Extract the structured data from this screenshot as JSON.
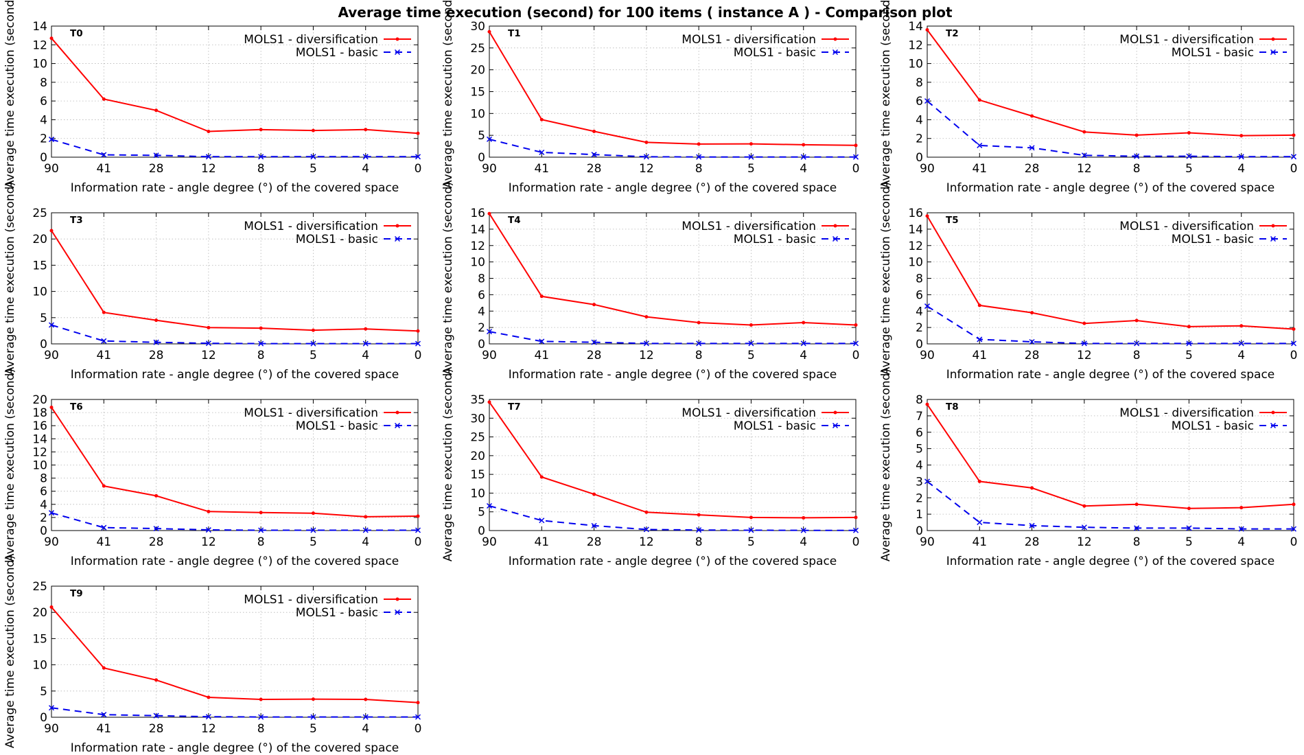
{
  "title": "Average time execution (second) for 100 items ( instance A )  - Comparison plot",
  "colors": {
    "diversification": "#ff0000",
    "basic": "#0000ee"
  },
  "chart_data": [
    {
      "type": "line",
      "panel": "T0",
      "xlabel": "Information rate - angle degree (°)  of the covered space",
      "ylabel": "Average time execution (second)",
      "categories": [
        "90",
        "41",
        "28",
        "12",
        "8",
        "5",
        "4",
        "0"
      ],
      "ylim": [
        0,
        14
      ],
      "yticks": [
        0,
        2,
        4,
        6,
        8,
        10,
        12,
        14
      ],
      "grid": true,
      "legend_position": "top-right",
      "series": [
        {
          "name": "MOLS1 - diversification",
          "values": [
            12.7,
            6.2,
            5.0,
            2.75,
            2.95,
            2.85,
            2.95,
            2.55
          ]
        },
        {
          "name": "MOLS1 - basic",
          "values": [
            1.9,
            0.25,
            0.2,
            0.05,
            0.05,
            0.05,
            0.05,
            0.05
          ]
        }
      ]
    },
    {
      "type": "line",
      "panel": "T1",
      "xlabel": "Information rate - angle degree (°)  of the covered space",
      "ylabel": "Average time execution (second)",
      "categories": [
        "90",
        "41",
        "28",
        "12",
        "8",
        "5",
        "4",
        "0"
      ],
      "ylim": [
        0,
        30
      ],
      "yticks": [
        0,
        5,
        10,
        15,
        20,
        25,
        30
      ],
      "grid": true,
      "legend_position": "top-right",
      "series": [
        {
          "name": "MOLS1 - diversification",
          "values": [
            28.7,
            8.6,
            5.9,
            3.4,
            3.0,
            3.05,
            2.85,
            2.7
          ]
        },
        {
          "name": "MOLS1 - basic",
          "values": [
            4.1,
            1.1,
            0.6,
            0.1,
            0.05,
            0.05,
            0.05,
            0.05
          ]
        }
      ]
    },
    {
      "type": "line",
      "panel": "T2",
      "xlabel": "Information rate - angle degree (°)  of the covered space",
      "ylabel": "Average time execution (second)",
      "categories": [
        "90",
        "41",
        "28",
        "12",
        "8",
        "5",
        "4",
        "0"
      ],
      "ylim": [
        0,
        14
      ],
      "yticks": [
        0,
        2,
        4,
        6,
        8,
        10,
        12,
        14
      ],
      "grid": true,
      "legend_position": "top-right",
      "series": [
        {
          "name": "MOLS1 - diversification",
          "values": [
            13.6,
            6.1,
            4.4,
            2.7,
            2.35,
            2.6,
            2.3,
            2.35
          ]
        },
        {
          "name": "MOLS1 - basic",
          "values": [
            6.0,
            1.25,
            1.0,
            0.2,
            0.1,
            0.1,
            0.05,
            0.05
          ]
        }
      ]
    },
    {
      "type": "line",
      "panel": "T3",
      "xlabel": "Information rate - angle degree (°)  of the covered space",
      "ylabel": "Average time execution (second)",
      "categories": [
        "90",
        "41",
        "28",
        "12",
        "8",
        "5",
        "4",
        "0"
      ],
      "ylim": [
        0,
        25
      ],
      "yticks": [
        0,
        5,
        10,
        15,
        20,
        25
      ],
      "grid": true,
      "legend_position": "top-right",
      "series": [
        {
          "name": "MOLS1 - diversification",
          "values": [
            21.6,
            6.0,
            4.5,
            3.1,
            3.0,
            2.6,
            2.85,
            2.45
          ]
        },
        {
          "name": "MOLS1 - basic",
          "values": [
            3.6,
            0.55,
            0.3,
            0.1,
            0.05,
            0.05,
            0.05,
            0.05
          ]
        }
      ]
    },
    {
      "type": "line",
      "panel": "T4",
      "xlabel": "Information rate - angle degree (°)  of the covered space",
      "ylabel": "Average time execution (second)",
      "categories": [
        "90",
        "41",
        "28",
        "12",
        "8",
        "5",
        "4",
        "0"
      ],
      "ylim": [
        0,
        16
      ],
      "yticks": [
        0,
        2,
        4,
        6,
        8,
        10,
        12,
        14,
        16
      ],
      "grid": true,
      "legend_position": "top-right",
      "series": [
        {
          "name": "MOLS1 - diversification",
          "values": [
            15.9,
            5.8,
            4.8,
            3.3,
            2.6,
            2.3,
            2.6,
            2.3
          ]
        },
        {
          "name": "MOLS1 - basic",
          "values": [
            1.5,
            0.3,
            0.2,
            0.05,
            0.05,
            0.05,
            0.05,
            0.05
          ]
        }
      ]
    },
    {
      "type": "line",
      "panel": "T5",
      "xlabel": "Information rate - angle degree (°)  of the covered space",
      "ylabel": "Average time execution (second)",
      "categories": [
        "90",
        "41",
        "28",
        "12",
        "8",
        "5",
        "4",
        "0"
      ],
      "ylim": [
        0,
        16
      ],
      "yticks": [
        0,
        2,
        4,
        6,
        8,
        10,
        12,
        14,
        16
      ],
      "grid": true,
      "legend_position": "top-right",
      "series": [
        {
          "name": "MOLS1 - diversification",
          "values": [
            15.6,
            4.7,
            3.8,
            2.5,
            2.85,
            2.1,
            2.2,
            1.8
          ]
        },
        {
          "name": "MOLS1 - basic",
          "values": [
            4.6,
            0.55,
            0.25,
            0.05,
            0.05,
            0.05,
            0.05,
            0.05
          ]
        }
      ]
    },
    {
      "type": "line",
      "panel": "T6",
      "xlabel": "Information rate - angle degree (°)  of the covered space",
      "ylabel": "Average time execution (second)",
      "categories": [
        "90",
        "41",
        "28",
        "12",
        "8",
        "5",
        "4",
        "0"
      ],
      "ylim": [
        0,
        20
      ],
      "yticks": [
        0,
        2,
        4,
        6,
        8,
        10,
        12,
        14,
        16,
        18,
        20
      ],
      "grid": true,
      "legend_position": "top-right",
      "series": [
        {
          "name": "MOLS1 - diversification",
          "values": [
            18.8,
            6.8,
            5.3,
            2.9,
            2.75,
            2.65,
            2.1,
            2.2
          ]
        },
        {
          "name": "MOLS1 - basic",
          "values": [
            2.7,
            0.45,
            0.3,
            0.1,
            0.05,
            0.05,
            0.05,
            0.05
          ]
        }
      ]
    },
    {
      "type": "line",
      "panel": "T7",
      "xlabel": "Information rate - angle degree (°)  of the covered space",
      "ylabel": "Average time execution (second)",
      "categories": [
        "90",
        "41",
        "28",
        "12",
        "8",
        "5",
        "4",
        "0"
      ],
      "ylim": [
        0,
        35
      ],
      "yticks": [
        0,
        5,
        10,
        15,
        20,
        25,
        30,
        35
      ],
      "grid": true,
      "legend_position": "top-right",
      "series": [
        {
          "name": "MOLS1 - diversification",
          "values": [
            34.3,
            14.3,
            9.7,
            4.9,
            4.2,
            3.5,
            3.4,
            3.5
          ]
        },
        {
          "name": "MOLS1 - basic",
          "values": [
            6.6,
            2.7,
            1.3,
            0.3,
            0.15,
            0.1,
            0.05,
            0.05
          ]
        }
      ]
    },
    {
      "type": "line",
      "panel": "T8",
      "xlabel": "Information rate - angle degree (°)  of the covered space",
      "ylabel": "Average time execution (second)",
      "categories": [
        "90",
        "41",
        "28",
        "12",
        "8",
        "5",
        "4",
        "0"
      ],
      "ylim": [
        0,
        8
      ],
      "yticks": [
        0,
        1,
        2,
        3,
        4,
        5,
        6,
        7,
        8
      ],
      "grid": true,
      "legend_position": "top-right",
      "series": [
        {
          "name": "MOLS1 - diversification",
          "values": [
            7.7,
            3.0,
            2.6,
            1.5,
            1.6,
            1.35,
            1.4,
            1.6
          ]
        },
        {
          "name": "MOLS1 - basic",
          "values": [
            3.0,
            0.5,
            0.3,
            0.2,
            0.15,
            0.15,
            0.1,
            0.1
          ]
        }
      ]
    },
    {
      "type": "line",
      "panel": "T9",
      "xlabel": "Information rate - angle degree (°)  of the covered space",
      "ylabel": "Average time execution (second)",
      "categories": [
        "90",
        "41",
        "28",
        "12",
        "8",
        "5",
        "4",
        "0"
      ],
      "ylim": [
        0,
        25
      ],
      "yticks": [
        0,
        5,
        10,
        15,
        20,
        25
      ],
      "grid": true,
      "legend_position": "top-right",
      "series": [
        {
          "name": "MOLS1 - diversification",
          "values": [
            21.0,
            9.4,
            7.1,
            3.8,
            3.4,
            3.45,
            3.4,
            2.8
          ]
        },
        {
          "name": "MOLS1 - basic",
          "values": [
            1.8,
            0.5,
            0.3,
            0.1,
            0.05,
            0.05,
            0.05,
            0.05
          ]
        }
      ]
    }
  ]
}
